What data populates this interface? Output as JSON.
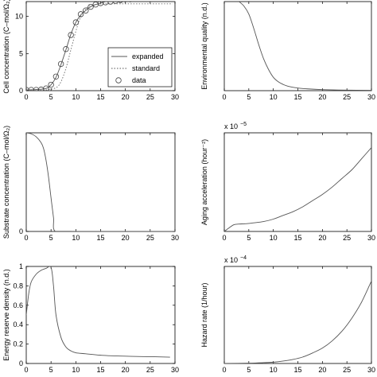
{
  "chart_data": [
    {
      "type": "line",
      "ylabel": "Cell concentration (C–mol/Ω₂)",
      "xlim": [
        0,
        30
      ],
      "ylim": [
        0,
        12
      ],
      "xticks": [
        0,
        5,
        10,
        15,
        20,
        25,
        30
      ],
      "yticks": [
        0,
        5,
        10
      ],
      "xtick_labels": [
        "0",
        "5",
        "10",
        "15",
        "20",
        "25",
        "30"
      ],
      "ytick_labels": [
        "0",
        "5",
        "10"
      ],
      "legend_position": "lower-right",
      "legend": [
        "expanded",
        "standard",
        "data"
      ],
      "series": [
        {
          "name": "expanded",
          "style": "solid",
          "x": [
            0,
            2,
            4,
            5,
            6,
            7,
            8,
            9,
            10,
            11,
            12,
            13,
            14,
            15,
            16,
            17,
            18,
            20,
            22,
            24,
            26,
            28,
            29.5
          ],
          "y": [
            0.1,
            0.15,
            0.3,
            0.8,
            1.8,
            3.5,
            5.5,
            7.6,
            9.2,
            10.2,
            10.8,
            11.3,
            11.6,
            11.8,
            12.0,
            12.1,
            12.2,
            12.3,
            12.4,
            12.45,
            12.5,
            12.5,
            12.5
          ]
        },
        {
          "name": "standard",
          "style": "dotted",
          "x": [
            0,
            2,
            4,
            6,
            7,
            8,
            9,
            10,
            11,
            12,
            13,
            14,
            15,
            16,
            18,
            20,
            22,
            24,
            26,
            28,
            29.5
          ],
          "y": [
            0.05,
            0.05,
            0.1,
            0.4,
            1.2,
            3.0,
            5.5,
            8.0,
            10.0,
            11.0,
            11.5,
            11.6,
            11.7,
            11.7,
            11.7,
            11.7,
            11.7,
            11.7,
            11.7,
            11.7,
            11.7
          ]
        },
        {
          "name": "data",
          "style": "marker",
          "x": [
            0,
            1,
            2,
            3,
            4,
            5,
            6,
            7,
            8,
            9,
            10,
            11,
            12,
            13,
            14,
            15,
            16,
            17,
            18,
            19,
            20,
            21,
            22,
            23,
            24,
            25,
            26,
            27,
            28,
            29
          ],
          "y": [
            0.1,
            0.1,
            0.1,
            0.15,
            0.3,
            0.8,
            1.9,
            3.6,
            5.6,
            7.5,
            9.2,
            10.3,
            10.8,
            11.3,
            11.6,
            11.8,
            11.9,
            12.0,
            12.1,
            12.2,
            12.3,
            12.3,
            12.4,
            12.4,
            12.4,
            12.5,
            12.5,
            12.5,
            12.5,
            12.5
          ]
        }
      ]
    },
    {
      "type": "line",
      "ylabel": "Environmental quality (n.d.)",
      "xlim": [
        0,
        30
      ],
      "ylim": [
        0,
        1
      ],
      "xticks": [
        0,
        5,
        10,
        15,
        20,
        25,
        30
      ],
      "xtick_labels": [
        "0",
        "5",
        "10",
        "15",
        "20",
        "25",
        "30"
      ],
      "series": [
        {
          "style": "solid",
          "x": [
            3,
            4,
            5,
            6,
            7,
            8,
            9,
            10,
            11,
            12,
            13,
            15,
            17,
            20,
            25,
            30
          ],
          "y": [
            1.0,
            0.95,
            0.86,
            0.7,
            0.52,
            0.36,
            0.24,
            0.15,
            0.1,
            0.07,
            0.05,
            0.03,
            0.02,
            0.012,
            0.006,
            0.004
          ]
        }
      ]
    },
    {
      "type": "line",
      "ylabel": "Substrate concentration (C–mol/Ω₂)",
      "xlim": [
        0,
        30
      ],
      "ylim": [
        0,
        1
      ],
      "xticks": [
        0,
        5,
        10,
        15,
        20,
        25,
        30
      ],
      "yticks": [
        0
      ],
      "xtick_labels": [
        "0",
        "5",
        "10",
        "15",
        "20",
        "25",
        "30"
      ],
      "ytick_labels": [
        "0"
      ],
      "series": [
        {
          "style": "solid",
          "x": [
            0,
            1,
            2,
            3,
            3.5,
            4,
            4.5,
            5,
            5.5,
            5.9,
            10,
            15,
            20,
            25,
            30
          ],
          "y": [
            1.0,
            0.99,
            0.96,
            0.9,
            0.84,
            0.72,
            0.55,
            0.34,
            0.14,
            0.0,
            0.0,
            0.0,
            0.0,
            0.0,
            0.0
          ]
        }
      ]
    },
    {
      "type": "line",
      "ylabel": "Aging acceleration (hour⁻²)",
      "multiplier": "x 10",
      "multiplier_exp": "−5",
      "xlim": [
        0,
        30
      ],
      "ylim": [
        0,
        8
      ],
      "xticks": [
        0,
        5,
        10,
        15,
        20,
        25,
        30
      ],
      "xtick_labels": [
        "0",
        "5",
        "10",
        "15",
        "20",
        "25",
        "30"
      ],
      "series": [
        {
          "style": "solid",
          "x": [
            0,
            1,
            2,
            3,
            4,
            5,
            6,
            8,
            10,
            12,
            14,
            16,
            18,
            20,
            22,
            24,
            26,
            28,
            30
          ],
          "y": [
            0,
            0.3,
            0.55,
            0.6,
            0.62,
            0.65,
            0.7,
            0.8,
            1.0,
            1.3,
            1.6,
            2.0,
            2.5,
            3.0,
            3.6,
            4.3,
            5.0,
            5.9,
            6.8
          ]
        }
      ]
    },
    {
      "type": "line",
      "ylabel": "Energy reserve density (n.d.)",
      "xlim": [
        0,
        30
      ],
      "ylim": [
        0,
        1
      ],
      "xticks": [
        0,
        5,
        10,
        15,
        20,
        25,
        30
      ],
      "yticks": [
        0,
        0.2,
        0.4,
        0.6,
        0.8,
        1
      ],
      "xtick_labels": [
        "0",
        "5",
        "10",
        "15",
        "20",
        "25",
        "30"
      ],
      "ytick_labels": [
        "0",
        "0.2",
        "0.4",
        "0.6",
        "0.8",
        "1"
      ],
      "series": [
        {
          "style": "solid",
          "x": [
            0,
            0.5,
            1,
            2,
            3,
            4,
            5,
            5.5,
            6,
            7,
            8,
            9,
            10,
            12,
            15,
            20,
            25,
            29
          ],
          "y": [
            0.5,
            0.72,
            0.84,
            0.92,
            0.96,
            0.98,
            0.99,
            0.8,
            0.5,
            0.27,
            0.17,
            0.13,
            0.11,
            0.1,
            0.085,
            0.075,
            0.07,
            0.065
          ]
        }
      ]
    },
    {
      "type": "line",
      "ylabel": "Hazard rate (1/hour)",
      "multiplier": "x 10",
      "multiplier_exp": "−4",
      "xlim": [
        0,
        30
      ],
      "ylim": [
        0,
        6
      ],
      "xticks": [
        0,
        5,
        10,
        15,
        20,
        25,
        30
      ],
      "xtick_labels": [
        "0",
        "5",
        "10",
        "15",
        "20",
        "25",
        "30"
      ],
      "series": [
        {
          "style": "solid",
          "x": [
            0,
            5,
            8,
            10,
            12,
            14,
            16,
            18,
            20,
            22,
            24,
            26,
            28,
            30
          ],
          "y": [
            0,
            0.02,
            0.05,
            0.08,
            0.15,
            0.25,
            0.4,
            0.65,
            0.95,
            1.4,
            2.0,
            2.8,
            3.8,
            5.1
          ]
        }
      ]
    }
  ]
}
